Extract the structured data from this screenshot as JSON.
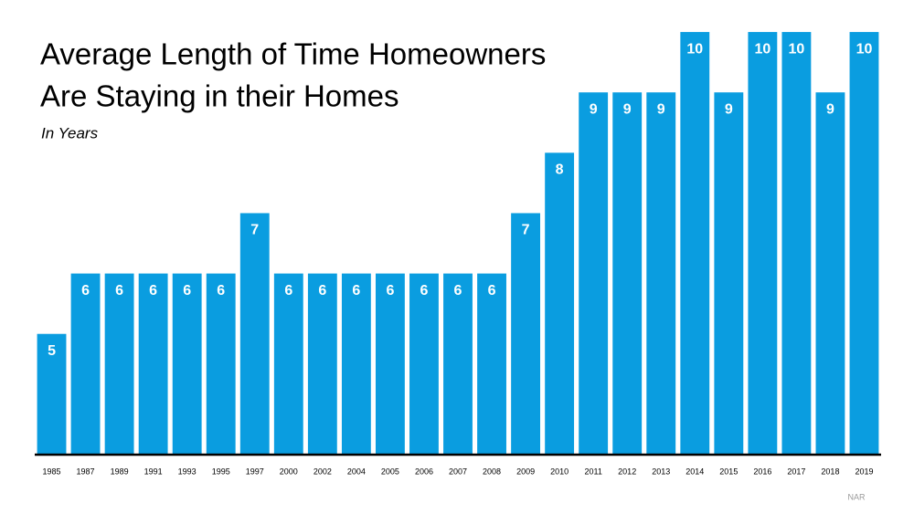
{
  "chart_data": {
    "type": "bar",
    "title": [
      "Average Length of Time Homeowners",
      "Are Staying in their Homes"
    ],
    "subtitle": "In Years",
    "source": "NAR",
    "categories": [
      "1985",
      "1987",
      "1989",
      "1991",
      "1993",
      "1995",
      "1997",
      "2000",
      "2002",
      "2004",
      "2005",
      "2006",
      "2007",
      "2008",
      "2009",
      "2010",
      "2011",
      "2012",
      "2013",
      "2014",
      "2015",
      "2016",
      "2017",
      "2018",
      "2019"
    ],
    "values": [
      5,
      6,
      6,
      6,
      6,
      6,
      7,
      6,
      6,
      6,
      6,
      6,
      6,
      6,
      7,
      8,
      9,
      9,
      9,
      10,
      9,
      10,
      10,
      9,
      10
    ],
    "color": "#0a9de0",
    "ylim": [
      3,
      10.5
    ]
  }
}
